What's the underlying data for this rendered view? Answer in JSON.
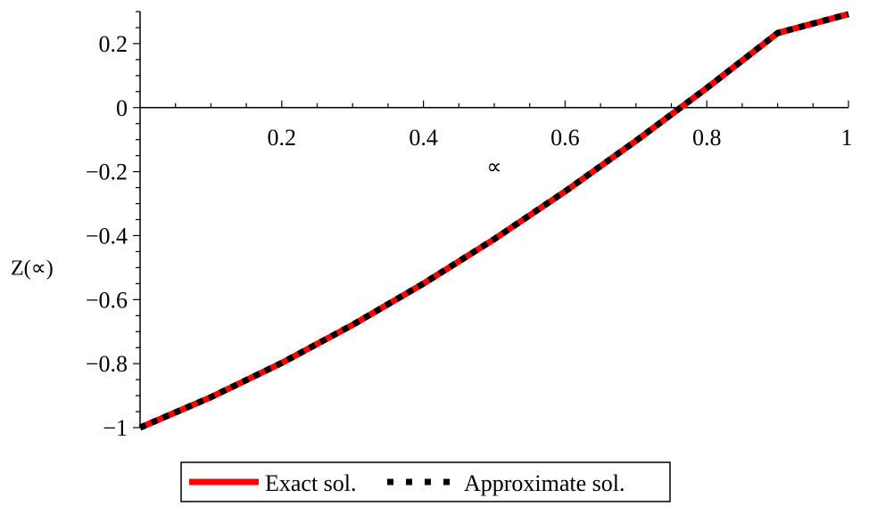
{
  "chart_data": {
    "type": "line",
    "xlabel": "∝",
    "ylabel": "Z(∝)",
    "xlim": [
      0,
      1
    ],
    "ylim": [
      -1,
      0.3
    ],
    "x_ticks": [
      0.2,
      0.4,
      0.6,
      0.8,
      1
    ],
    "x_tick_labels": [
      "0.2",
      "0.4",
      "0.6",
      "0.8",
      "1"
    ],
    "y_ticks": [
      0.2,
      0,
      -0.2,
      -0.4,
      -0.6,
      -0.8,
      -1
    ],
    "y_tick_labels": [
      "0.2",
      "0",
      "−0.2",
      "−0.4",
      "−0.6",
      "−0.8",
      "−1"
    ],
    "grid": false,
    "legend_position": "bottom",
    "x": [
      0,
      0.1,
      0.2,
      0.3,
      0.4,
      0.5,
      0.6,
      0.7,
      0.8,
      0.9,
      1.0
    ],
    "series": [
      {
        "name": "Exact sol.",
        "color": "#ff0000",
        "style": "solid",
        "values": [
          -1.0,
          -0.905,
          -0.798,
          -0.679,
          -0.55,
          -0.411,
          -0.262,
          -0.104,
          0.061,
          0.233,
          0.292
        ]
      },
      {
        "name": "Approximate sol.",
        "color": "#000000",
        "style": "dotted",
        "values": [
          -1.0,
          -0.905,
          -0.798,
          -0.679,
          -0.55,
          -0.411,
          -0.262,
          -0.104,
          0.061,
          0.233,
          0.292
        ]
      }
    ]
  }
}
